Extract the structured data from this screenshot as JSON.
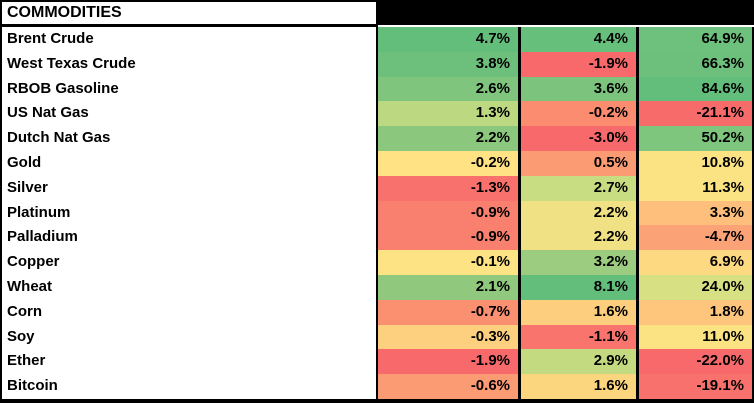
{
  "table": {
    "title": "COMMODITIES",
    "header_bar_color": "#000000",
    "rows": [
      {
        "name": "Brent Crude",
        "values": [
          "4.7%",
          "4.4%",
          "64.9%"
        ],
        "colors": [
          "#63BE7B",
          "#66BF7B",
          "#6EC17C"
        ]
      },
      {
        "name": "West Texas Crude",
        "values": [
          "3.8%",
          "-1.9%",
          "66.3%"
        ],
        "colors": [
          "#6CC07C",
          "#F8696B",
          "#6DC07C"
        ]
      },
      {
        "name": "RBOB Gasoline",
        "values": [
          "2.6%",
          "3.6%",
          "84.6%"
        ],
        "colors": [
          "#7FC57D",
          "#7CC47D",
          "#63BE7B"
        ]
      },
      {
        "name": "US Nat Gas",
        "values": [
          "1.3%",
          "-0.2%",
          "-21.1%"
        ],
        "colors": [
          "#BCD881",
          "#FB8C70",
          "#F86B6B"
        ]
      },
      {
        "name": "Dutch Nat Gas",
        "values": [
          "2.2%",
          "-3.0%",
          "50.2%"
        ],
        "colors": [
          "#8BC87E",
          "#F8696B",
          "#7EC57D"
        ]
      },
      {
        "name": "Gold",
        "values": [
          "-0.2%",
          "0.5%",
          "10.8%"
        ],
        "colors": [
          "#FFE284",
          "#FA9B73",
          "#FBE383"
        ]
      },
      {
        "name": "Silver",
        "values": [
          "-1.3%",
          "2.7%",
          "11.3%"
        ],
        "colors": [
          "#F8716C",
          "#C8DC81",
          "#FBE383"
        ]
      },
      {
        "name": "Platinum",
        "values": [
          "-0.9%",
          "2.2%",
          "3.3%"
        ],
        "colors": [
          "#F9806F",
          "#F0E184",
          "#FDBF7B"
        ]
      },
      {
        "name": "Palladium",
        "values": [
          "-0.9%",
          "2.2%",
          "-4.7%"
        ],
        "colors": [
          "#F9806F",
          "#F0E184",
          "#FBA376"
        ]
      },
      {
        "name": "Copper",
        "values": [
          "-0.1%",
          "3.2%",
          "6.9%"
        ],
        "colors": [
          "#FDE384",
          "#9CCC7F",
          "#FDDA81"
        ]
      },
      {
        "name": "Wheat",
        "values": [
          "2.1%",
          "8.1%",
          "24.0%"
        ],
        "colors": [
          "#90C97E",
          "#63BE7B",
          "#D7E082"
        ]
      },
      {
        "name": "Corn",
        "values": [
          "-0.7%",
          "1.6%",
          "1.8%"
        ],
        "colors": [
          "#FA9070",
          "#FDCE7E",
          "#FDC67C"
        ]
      },
      {
        "name": "Soy",
        "values": [
          "-0.3%",
          "-1.1%",
          "11.0%"
        ],
        "colors": [
          "#FDD07F",
          "#F9746D",
          "#FBE383"
        ]
      },
      {
        "name": "Ether",
        "values": [
          "-1.9%",
          "2.9%",
          "-22.0%"
        ],
        "colors": [
          "#F8696B",
          "#C3DA80",
          "#F8696B"
        ]
      },
      {
        "name": "Bitcoin",
        "values": [
          "-0.6%",
          "1.6%",
          "-19.1%"
        ],
        "colors": [
          "#FB9B73",
          "#FCD67F",
          "#F9716C"
        ]
      }
    ]
  },
  "chart_data": {
    "type": "heatmap",
    "title": "COMMODITIES",
    "rows": [
      "Brent Crude",
      "West Texas Crude",
      "RBOB Gasoline",
      "US Nat Gas",
      "Dutch Nat Gas",
      "Gold",
      "Silver",
      "Platinum",
      "Palladium",
      "Copper",
      "Wheat",
      "Corn",
      "Soy",
      "Ether",
      "Bitcoin"
    ],
    "columns": [
      "",
      "",
      ""
    ],
    "column_headers_visible": false,
    "unit": "%",
    "values": [
      [
        4.7,
        4.4,
        64.9
      ],
      [
        3.8,
        -1.9,
        66.3
      ],
      [
        2.6,
        3.6,
        84.6
      ],
      [
        1.3,
        -0.2,
        -21.1
      ],
      [
        2.2,
        -3.0,
        50.2
      ],
      [
        -0.2,
        0.5,
        10.8
      ],
      [
        -1.3,
        2.7,
        11.3
      ],
      [
        -0.9,
        2.2,
        3.3
      ],
      [
        -0.9,
        2.2,
        -4.7
      ],
      [
        -0.1,
        3.2,
        6.9
      ],
      [
        2.1,
        8.1,
        24.0
      ],
      [
        -0.7,
        1.6,
        1.8
      ],
      [
        -0.3,
        -1.1,
        11.0
      ],
      [
        -1.9,
        2.9,
        -22.0
      ],
      [
        -0.6,
        1.6,
        -19.1
      ]
    ],
    "color_scale": {
      "min": "#F8696B",
      "mid": "#FFEB84",
      "max": "#63BE7B",
      "per_column": true
    }
  }
}
